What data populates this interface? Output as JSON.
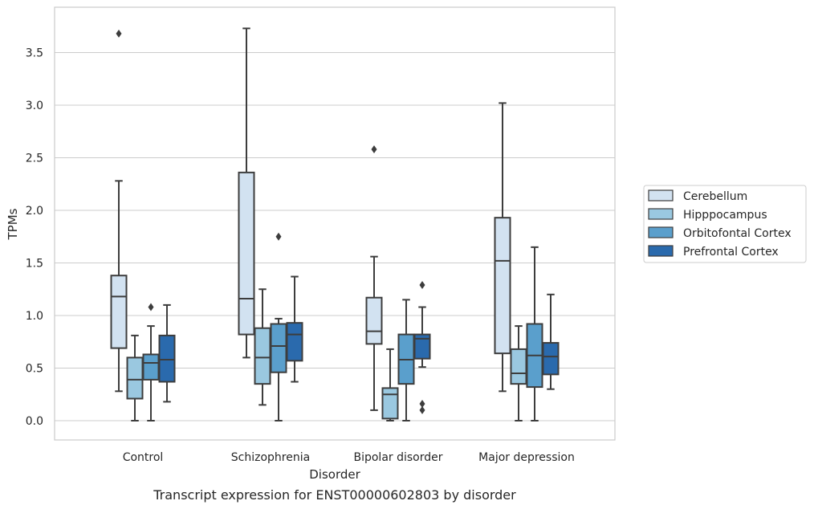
{
  "caption": "Transcript expression for ENST00000602803 by disorder",
  "chart_data": {
    "type": "boxplot",
    "xlabel": "Disorder",
    "ylabel": "TPMs",
    "ylim": [
      -0.18,
      3.9
    ],
    "yticks": [
      "0.0",
      "0.5",
      "1.0",
      "1.5",
      "2.0",
      "2.5",
      "3.0",
      "3.5"
    ],
    "grid": "horizontal",
    "legend_position": "right",
    "categories": [
      "Control",
      "Schizophrenia",
      "Bipolar disorder",
      "Major depression"
    ],
    "series": [
      {
        "name": "Cerebellum",
        "color": "#d2e2f1",
        "boxes": [
          {
            "whislo": 0.28,
            "q1": 0.69,
            "med": 1.18,
            "q3": 1.38,
            "whishi": 2.28,
            "fliers": [
              3.68
            ]
          },
          {
            "whislo": 0.6,
            "q1": 0.82,
            "med": 1.16,
            "q3": 2.36,
            "whishi": 3.73,
            "fliers": []
          },
          {
            "whislo": 0.1,
            "q1": 0.73,
            "med": 0.85,
            "q3": 1.17,
            "whishi": 1.56,
            "fliers": [
              2.58
            ]
          },
          {
            "whislo": 0.28,
            "q1": 0.64,
            "med": 1.52,
            "q3": 1.93,
            "whishi": 3.02,
            "fliers": []
          }
        ]
      },
      {
        "name": "Hipppocampus",
        "color": "#9ac8e0",
        "boxes": [
          {
            "whislo": 0.0,
            "q1": 0.21,
            "med": 0.39,
            "q3": 0.6,
            "whishi": 0.81,
            "fliers": []
          },
          {
            "whislo": 0.15,
            "q1": 0.35,
            "med": 0.6,
            "q3": 0.88,
            "whishi": 1.25,
            "fliers": []
          },
          {
            "whislo": 0.0,
            "q1": 0.02,
            "med": 0.25,
            "q3": 0.31,
            "whishi": 0.68,
            "fliers": []
          },
          {
            "whislo": 0.0,
            "q1": 0.35,
            "med": 0.45,
            "q3": 0.68,
            "whishi": 0.9,
            "fliers": []
          }
        ]
      },
      {
        "name": "Orbitofontal Cortex",
        "color": "#5a9fcc",
        "boxes": [
          {
            "whislo": 0.0,
            "q1": 0.39,
            "med": 0.55,
            "q3": 0.63,
            "whishi": 0.9,
            "fliers": [
              1.08
            ]
          },
          {
            "whislo": 0.0,
            "q1": 0.46,
            "med": 0.71,
            "q3": 0.92,
            "whishi": 0.97,
            "fliers": [
              1.75
            ]
          },
          {
            "whislo": 0.0,
            "q1": 0.35,
            "med": 0.58,
            "q3": 0.82,
            "whishi": 1.15,
            "fliers": []
          },
          {
            "whislo": 0.0,
            "q1": 0.32,
            "med": 0.62,
            "q3": 0.92,
            "whishi": 1.65,
            "fliers": []
          }
        ]
      },
      {
        "name": "Prefrontal Cortex",
        "color": "#2a6aad",
        "boxes": [
          {
            "whislo": 0.18,
            "q1": 0.37,
            "med": 0.58,
            "q3": 0.81,
            "whishi": 1.1,
            "fliers": []
          },
          {
            "whislo": 0.37,
            "q1": 0.57,
            "med": 0.82,
            "q3": 0.93,
            "whishi": 1.37,
            "fliers": []
          },
          {
            "whislo": 0.51,
            "q1": 0.59,
            "med": 0.78,
            "q3": 0.82,
            "whishi": 1.08,
            "fliers": [
              1.29,
              0.16,
              0.1
            ]
          },
          {
            "whislo": 0.3,
            "q1": 0.44,
            "med": 0.61,
            "q3": 0.74,
            "whishi": 1.2,
            "fliers": []
          }
        ]
      }
    ]
  }
}
